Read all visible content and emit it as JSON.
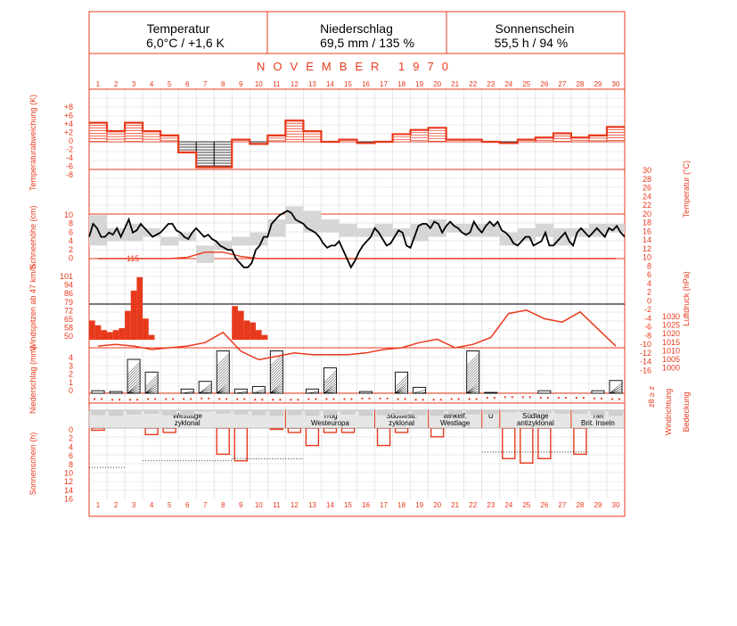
{
  "header": {
    "temperatur_title": "Temperatur",
    "temperatur_value": "6,0°C / +1,6 K",
    "niederschlag_title": "Niederschlag",
    "niederschlag_value": "69,5 mm / 135 %",
    "sonnenschein_title": "Sonnenschein",
    "sonnenschein_value": "55,5 h / 94 %"
  },
  "month_label": "NOVEMBER 1970",
  "days": [
    "1",
    "2",
    "3",
    "4",
    "5",
    "6",
    "7",
    "8",
    "9",
    "10",
    "11",
    "12",
    "13",
    "14",
    "15",
    "16",
    "17",
    "18",
    "19",
    "20",
    "21",
    "22",
    "23",
    "24",
    "25",
    "26",
    "27",
    "28",
    "29",
    "30"
  ],
  "axis_labels": {
    "temp_anomaly": "Temperaturabweichung (K)",
    "temperature": "Temperatur (°C)",
    "snow": "Schneehöhe (cm)",
    "wind": "Windspitzen ab 47 km/h",
    "pressure": "Luftdruck (hPa)",
    "precip": "Niederschlag (mm)",
    "wind_dir": "Windrichtung",
    "cloud": "Bedeckung",
    "sun": "Sonnenschein (h)"
  },
  "ticks": {
    "temp_anomaly": [
      "+8",
      "+6",
      "+4",
      "+2",
      "0",
      "-2",
      "-4",
      "-6",
      "-8"
    ],
    "snow": [
      "10",
      "8",
      "6",
      "4",
      "2",
      "0"
    ],
    "wind": [
      "101",
      "94",
      "86",
      "79",
      "72",
      "65",
      "58",
      "50"
    ],
    "precip": [
      "4",
      "3",
      "2",
      "1",
      "0"
    ],
    "sun": [
      "0",
      "2",
      "4",
      "6",
      "8",
      "10",
      "12",
      "14",
      "16"
    ],
    "temperature": [
      "30",
      "28",
      "26",
      "24",
      "22",
      "20",
      "18",
      "16",
      "14",
      "12",
      "10",
      "8",
      "6",
      "4",
      "2",
      "0",
      "-2",
      "-4",
      "-6",
      "-8",
      "-10",
      "-12",
      "-14",
      "-16"
    ],
    "pressure": [
      "1030",
      "1025",
      "1020",
      "1015",
      "1010",
      "1005",
      "1000"
    ],
    "right_small": "z8 ≥ z",
    "wind_peak_label": "115"
  },
  "weather_types": [
    {
      "from": 1,
      "to": 11,
      "label1": "Westlage",
      "label2": "zyklonal"
    },
    {
      "from": 12,
      "to": 16,
      "label1": "Trog",
      "label2": "Westeuropa"
    },
    {
      "from": 17,
      "to": 19,
      "label1": "Südwestl.",
      "label2": "zyklonal"
    },
    {
      "from": 20,
      "to": 22,
      "label1": "winkelf.",
      "label2": "Westlage"
    },
    {
      "from": 23,
      "to": 23,
      "label1": "U",
      "label2": ""
    },
    {
      "from": 24,
      "to": 27,
      "label1": "Südlage",
      "label2": "antizyklonal"
    },
    {
      "from": 28,
      "to": 30,
      "label1": "Tief",
      "label2": "Brit. Inseln"
    }
  ],
  "colors": {
    "accent": "#e8391c",
    "grid": "#d8d8d8",
    "shade": "#d6d6d6"
  },
  "chart_data": {
    "type": "climate-diagram",
    "temp_anomaly_daily_K": [
      4.5,
      2.5,
      4.5,
      2.5,
      1.5,
      -2.5,
      -6.0,
      -6.0,
      0.5,
      -0.5,
      1.5,
      5.0,
      2.5,
      0.0,
      0.5,
      -0.3,
      0.0,
      1.8,
      2.8,
      3.3,
      0.5,
      0.5,
      0.0,
      -0.3,
      0.5,
      1.0,
      2.0,
      1.0,
      1.5,
      3.5
    ],
    "temperature_C": [
      5,
      8,
      7,
      5,
      5,
      6,
      5.5,
      7,
      5,
      7,
      9,
      6,
      6.5,
      8,
      7,
      6,
      5,
      5.5,
      6,
      7,
      8,
      8,
      6.5,
      6,
      5,
      4.5,
      6,
      7,
      6,
      5,
      5.5,
      4.5,
      4,
      3,
      2.5,
      2,
      2,
      0,
      -1,
      -2,
      -2,
      -1,
      2,
      3,
      5,
      5,
      8,
      9,
      10,
      10.5,
      11,
      10.5,
      9,
      8.5,
      8,
      7,
      6.5,
      6,
      5,
      3.5,
      2.5,
      3,
      3,
      4,
      2,
      0,
      -2,
      -0.5,
      1.5,
      3,
      4,
      5,
      7,
      6,
      4.5,
      3,
      3.5,
      5,
      6.5,
      6,
      3,
      2.5,
      5,
      7.5,
      8,
      8,
      7,
      8.5,
      8,
      6,
      7.5,
      8.5,
      7.5,
      7,
      6,
      5.5,
      6,
      8.5,
      7,
      6,
      7.5,
      8.5,
      7.5,
      8.5,
      6.5,
      6,
      5,
      3.5,
      3,
      4,
      5,
      5,
      3,
      3.5,
      4,
      6,
      3,
      3,
      4,
      5,
      6,
      4,
      3,
      6,
      7,
      6,
      5,
      6,
      7,
      6,
      5,
      7,
      6.5,
      7.5,
      6,
      5
    ],
    "temp_range_shade": [
      [
        3,
        10
      ],
      [
        4,
        7
      ],
      [
        4,
        8
      ],
      [
        5,
        7
      ],
      [
        3,
        5
      ],
      [
        4,
        6
      ],
      [
        -1,
        3
      ],
      [
        2,
        4
      ],
      [
        3,
        5
      ],
      [
        3,
        6
      ],
      [
        5,
        9
      ],
      [
        8,
        12
      ],
      [
        6,
        11
      ],
      [
        6,
        9
      ],
      [
        5,
        8
      ],
      [
        5,
        7
      ],
      [
        5,
        8
      ],
      [
        5,
        7
      ],
      [
        4,
        8
      ],
      [
        5,
        9
      ],
      [
        6,
        8
      ],
      [
        5,
        8
      ],
      [
        5,
        8
      ],
      [
        3,
        6
      ],
      [
        4,
        7
      ],
      [
        5,
        8
      ],
      [
        3,
        7
      ],
      [
        5,
        7
      ],
      [
        5,
        8
      ],
      [
        6,
        8
      ]
    ],
    "snow_cm": [
      0,
      0,
      0,
      0,
      0,
      0.3,
      1.5,
      1.5,
      0.5,
      0,
      0,
      0,
      0,
      0,
      0,
      0,
      0,
      0,
      0,
      0,
      0,
      0,
      0,
      0,
      0,
      0,
      0,
      0,
      0,
      0
    ],
    "wind_peak_kmh": [
      [
        70,
        65,
        60
      ],
      [
        58,
        60,
        62
      ],
      [
        80,
        101,
        115
      ],
      [
        72,
        55,
        50
      ],
      [
        0,
        0,
        0
      ],
      [
        0,
        0,
        0
      ],
      [
        0,
        0,
        0
      ],
      [
        0,
        0,
        0
      ],
      [
        85,
        80,
        70
      ],
      [
        68,
        60,
        55
      ],
      [
        0,
        0,
        0
      ],
      [
        0,
        0,
        0
      ],
      [
        0,
        0,
        0
      ],
      [
        0,
        0,
        0
      ],
      [
        0,
        0,
        0
      ],
      [
        0,
        0,
        0
      ],
      [
        0,
        0,
        0
      ],
      [
        0,
        0,
        0
      ],
      [
        50,
        0,
        0
      ],
      [
        0,
        0,
        0
      ],
      [
        0,
        0,
        0
      ],
      [
        0,
        0,
        0
      ],
      [
        0,
        0,
        0
      ],
      [
        0,
        0,
        0
      ],
      [
        0,
        0,
        0
      ],
      [
        0,
        0,
        0
      ],
      [
        0,
        0,
        0
      ],
      [
        0,
        0,
        0
      ],
      [
        0,
        0,
        0
      ],
      [
        0,
        0,
        0
      ]
    ],
    "pressure_hPa": [
      1011,
      1012,
      1011,
      1009,
      1010,
      1011,
      1013,
      1019,
      1008,
      1003,
      1005,
      1007,
      1006,
      1006,
      1006,
      1007,
      1009,
      1010,
      1013,
      1015,
      1010,
      1012,
      1016,
      1030,
      1032,
      1027,
      1025,
      1031,
      1021,
      1011
    ],
    "precip_mm": [
      0.3,
      0.2,
      4.0,
      2.5,
      0.0,
      0.5,
      1.4,
      5.0,
      0.5,
      0.8,
      5.0,
      0.0,
      0.5,
      3.0,
      0.0,
      0.2,
      0.0,
      2.5,
      0.7,
      0.0,
      0.0,
      5.0,
      0.1,
      0.0,
      0.0,
      0.3,
      0.0,
      0.0,
      0.3,
      1.5
    ],
    "sunshine_h": [
      0.5,
      0.0,
      0.0,
      1.5,
      1.0,
      0.0,
      0.0,
      6.0,
      7.5,
      0.0,
      0.3,
      1.0,
      4.0,
      1.0,
      1.0,
      0.0,
      4.0,
      1.0,
      0.0,
      2.0,
      0.0,
      0.0,
      0.0,
      7.0,
      8.0,
      7.0,
      0.0,
      6.0,
      0.0,
      0.0
    ],
    "sun_dotted_levels": [
      [
        1,
        2,
        9
      ],
      [
        4,
        8,
        7.5
      ],
      [
        9,
        12,
        7
      ],
      [
        12,
        20,
        0
      ],
      [
        23,
        28,
        5.5
      ]
    ],
    "wind_dir_index": [
      5,
      6,
      6,
      5,
      5,
      5,
      4,
      5,
      5,
      6,
      6,
      6,
      5,
      5,
      5,
      4,
      4,
      5,
      6,
      6,
      5,
      5,
      3,
      2,
      2,
      3,
      3,
      3,
      4,
      5
    ],
    "cloud_cover_octas": [
      7,
      8,
      6,
      5,
      7,
      8,
      2,
      5,
      6,
      7,
      8,
      7,
      8,
      7,
      6,
      8,
      7,
      8,
      7,
      8,
      6,
      6,
      6,
      3,
      3,
      4,
      5,
      5,
      7,
      8
    ]
  }
}
